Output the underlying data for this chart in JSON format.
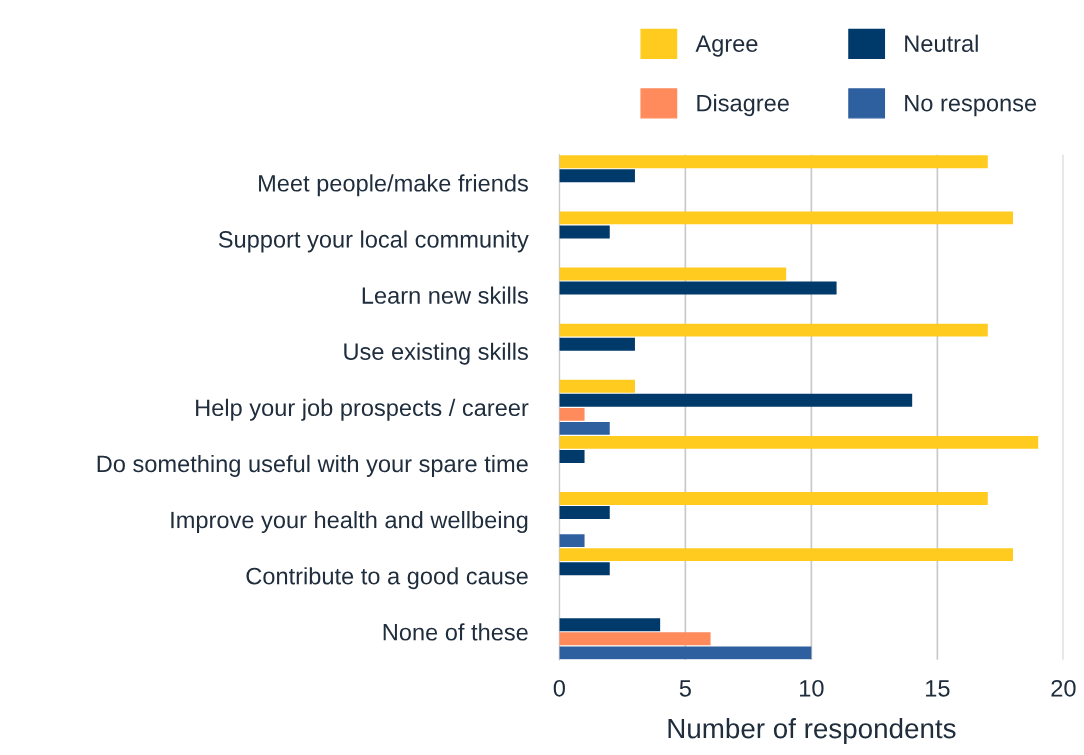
{
  "chart_data": {
    "type": "bar",
    "orientation": "horizontal",
    "xlabel": "Number of respondents",
    "categories": [
      "Meet people/make friends",
      "Support your local community",
      "Learn new skills",
      "Use existing skills",
      "Help your job prospects / career",
      "Do something useful with your spare time",
      "Improve your health and wellbeing",
      "Contribute to a good cause",
      "None of these"
    ],
    "series": [
      {
        "name": "Agree",
        "color": "#ffcb1f",
        "values": [
          17,
          18,
          9,
          17,
          3,
          19,
          17,
          18,
          null
        ]
      },
      {
        "name": "Neutral",
        "color": "#003a6b",
        "values": [
          3,
          2,
          11,
          3,
          14,
          1,
          2,
          2,
          4
        ]
      },
      {
        "name": "Disagree",
        "color": "#ff8a5b",
        "values": [
          null,
          null,
          null,
          null,
          1,
          null,
          null,
          null,
          6
        ]
      },
      {
        "name": "No response",
        "color": "#2e5f9e",
        "values": [
          null,
          null,
          null,
          null,
          2,
          null,
          1,
          null,
          10
        ]
      }
    ],
    "xlim": [
      0,
      20
    ],
    "xticks": [
      0,
      5,
      10,
      15,
      20
    ],
    "grid": "x",
    "legend": "top right"
  }
}
